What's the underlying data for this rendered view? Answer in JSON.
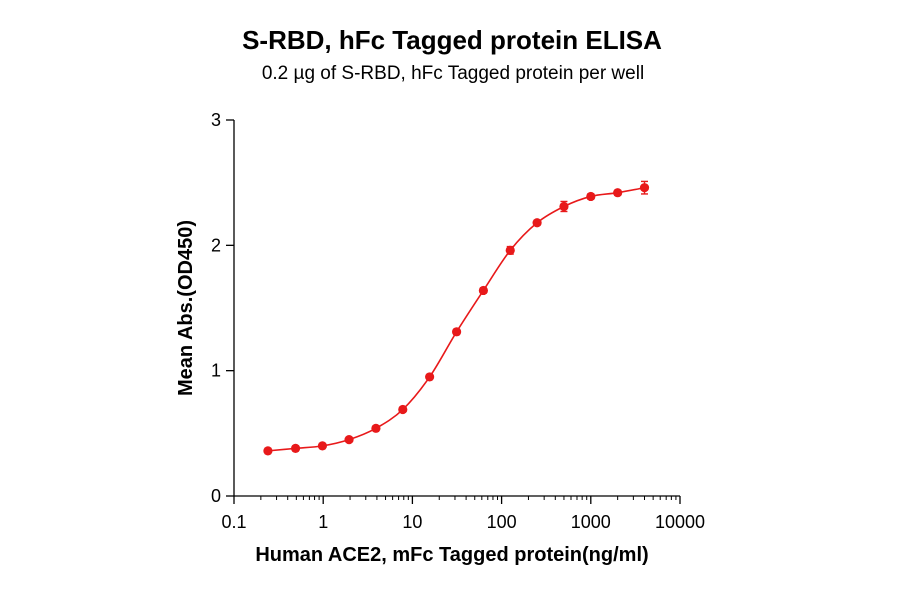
{
  "chart_data": {
    "type": "scatter",
    "title": "S-RBD, hFc Tagged protein ELISA",
    "subtitle": "0.2 µg of S-RBD, hFc Tagged protein per well",
    "xlabel": "Human ACE2, mFc Tagged protein(ng/ml)",
    "ylabel": "Mean Abs.(OD450)",
    "x_scale": "log",
    "xlim": [
      0.1,
      10000
    ],
    "ylim": [
      0,
      3
    ],
    "x_ticks": [
      0.1,
      1,
      10,
      100,
      1000,
      10000
    ],
    "x_tick_labels": [
      "0.1",
      "1",
      "10",
      "100",
      "1000",
      "10000"
    ],
    "y_ticks": [
      0,
      1,
      2,
      3
    ],
    "y_tick_labels": [
      "0",
      "1",
      "2",
      "3"
    ],
    "grid": false,
    "legend": "none",
    "fit_curve": "four-parameter logistic",
    "series": [
      {
        "color": "#e8191a",
        "x": [
          0.24,
          0.49,
          0.98,
          1.95,
          3.9,
          7.8,
          15.6,
          31.3,
          62.5,
          125,
          250,
          500,
          1000,
          2000,
          4000
        ],
        "y": [
          0.36,
          0.38,
          0.4,
          0.45,
          0.54,
          0.69,
          0.95,
          1.31,
          1.64,
          1.96,
          2.18,
          2.31,
          2.39,
          2.42,
          2.46
        ],
        "y_error": [
          0.01,
          0.01,
          0.01,
          0.01,
          0.01,
          0.015,
          0.015,
          0.02,
          0.02,
          0.03,
          0.02,
          0.04,
          0.02,
          0.02,
          0.05
        ]
      }
    ]
  }
}
